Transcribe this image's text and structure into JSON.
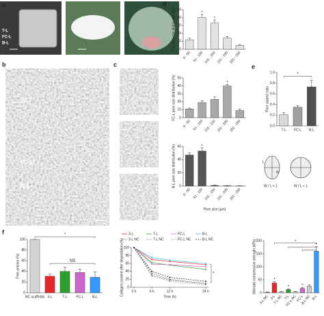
{
  "panel_labels": [
    "a",
    "b",
    "c",
    "d",
    "e",
    "f"
  ],
  "photo_labels": [
    "T-L",
    "FC-L",
    "B-L"
  ],
  "sem_labels": [
    "T-L",
    "FC-L",
    "B-L"
  ],
  "aspect_diagram": {
    "labels": [
      "L",
      "W",
      "W / L < 1",
      "W / L ≈ 1"
    ]
  },
  "chart_data": [
    {
      "type": "bar",
      "y_label": "T-L pore size distribution (%)",
      "categories": [
        "0 - 50",
        "51 - 100",
        "101 - 150",
        "151 - 200",
        "201 - 250"
      ],
      "values": [
        12,
        40,
        33,
        14,
        5
      ],
      "errors": [
        2,
        4,
        4,
        2,
        1
      ],
      "color": "#e2e2e2",
      "ylim": [
        0,
        50
      ],
      "yticks": [
        0,
        10,
        20,
        30,
        40,
        50
      ],
      "annotations": [
        "*",
        "*"
      ]
    },
    {
      "type": "bar",
      "y_label": "FC-L pore size distribution (%)",
      "categories": [
        "0 - 50",
        "51 - 100",
        "101 - 150",
        "151 - 200",
        "201 - 250"
      ],
      "values": [
        11,
        19,
        23,
        40,
        9
      ],
      "errors": [
        1,
        2,
        3,
        2,
        2
      ],
      "color": "#a9a9a9",
      "ylim": [
        0,
        50
      ],
      "yticks": [
        0,
        10,
        20,
        30,
        40,
        50
      ],
      "annotations": [
        "*"
      ]
    },
    {
      "type": "bar",
      "y_label": "B-L pore size distribution (%)",
      "x_label": "Pore size (μm)",
      "categories": [
        "0 - 50",
        "51 - 100",
        "101 - 150",
        "151 - 200",
        "201 - 250"
      ],
      "values": [
        47,
        53,
        1,
        0.5,
        0.3
      ],
      "errors": [
        3,
        5,
        0.5,
        0.3,
        0.2
      ],
      "color": "#555555",
      "ylim": [
        0,
        60
      ],
      "yticks": [
        0,
        20,
        40,
        60
      ],
      "annotations": [
        "*"
      ]
    },
    {
      "type": "bar",
      "y_label": "Pore aspect ratio",
      "categories": [
        "T-L",
        "FC-L",
        "B-L"
      ],
      "values": [
        0.21,
        0.35,
        0.73
      ],
      "errors": [
        0.04,
        0.03,
        0.12
      ],
      "colors": [
        "#d8d8d8",
        "#a0a0a0",
        "#505050"
      ],
      "ylim": [
        0,
        1
      ],
      "yticks": [
        {
          "value": 0,
          "label": "0.0"
        },
        0.2,
        0.4,
        0.6,
        0.8,
        {
          "value": 1,
          "label": "1.0"
        }
      ],
      "annotations": [
        "*"
      ]
    },
    {
      "type": "bar",
      "y_label": "Free amines (%)",
      "categories": [
        "NC scaffolds",
        "3-L",
        "T-L",
        "FC-L",
        "B-L"
      ],
      "values": [
        100,
        31,
        40,
        38,
        29
      ],
      "errors": [
        0,
        4,
        8,
        6,
        10
      ],
      "colors": [
        "#d4d4d4",
        "#e8262a",
        "#2ca02c",
        "#cc66cc",
        "#3399ff"
      ],
      "ylim": [
        0,
        100
      ],
      "yticks": [
        0,
        20,
        40,
        60,
        80,
        100
      ],
      "annotations": [
        "*",
        "NS"
      ]
    },
    {
      "type": "line",
      "y_label": "Collagen content after degradation (%)",
      "x_label": "Time (h)",
      "x": [
        0,
        6,
        12,
        24
      ],
      "xlim": [
        0,
        24
      ],
      "xticks": [
        {
          "value": 0,
          "label": "0 h"
        },
        {
          "value": 6,
          "label": "6 h"
        },
        {
          "value": 12,
          "label": "12 h"
        },
        {
          "value": 24,
          "label": "24 h"
        }
      ],
      "ylim": [
        0,
        100
      ],
      "yticks": [
        0,
        20,
        40,
        60,
        80,
        100
      ],
      "series": [
        {
          "name": "3-L",
          "color": "#e8262a",
          "values": [
            100,
            70,
            65,
            57
          ]
        },
        {
          "name": "T-L",
          "color": "#2ca02c",
          "values": [
            100,
            62,
            56,
            45
          ]
        },
        {
          "name": "FC-L",
          "color": "#cc66cc",
          "values": [
            100,
            58,
            57,
            52
          ]
        },
        {
          "name": "B-L",
          "color": "#33b5e5",
          "values": [
            100,
            75,
            68,
            60
          ]
        },
        {
          "name": "3-L NC",
          "color": "#555555",
          "line_style": "dashed",
          "values": [
            100,
            35,
            20,
            10
          ]
        },
        {
          "name": "T-L NC",
          "color": "#777777",
          "line_style": "dashed",
          "values": [
            100,
            30,
            18,
            8
          ]
        },
        {
          "name": "FC-L NC",
          "color": "#999999",
          "line_style": "dashed",
          "values": [
            100,
            28,
            15,
            6
          ]
        },
        {
          "name": "B-L NC",
          "color": "#222222",
          "line_style": "dashed",
          "values": [
            100,
            40,
            25,
            15
          ]
        }
      ],
      "annotations": [
        "*"
      ]
    },
    {
      "type": "bar",
      "y_label": "Ultimate compressive strength (kPa)",
      "categories": [
        "3-L NC",
        "3-L",
        "T-L NC",
        "T-L",
        "FC-L NC",
        "FC-L",
        "B-L NC",
        "B-L"
      ],
      "values": [
        2,
        38,
        3,
        12,
        4,
        17,
        25,
        160
      ],
      "errors": [
        1,
        5,
        1,
        3,
        1,
        4,
        6,
        18
      ],
      "colors": [
        "#cccccc",
        "#e8262a",
        "#cccccc",
        "#2ca02c",
        "#cccccc",
        "#cc66cc",
        "#cccccc",
        "#3399ff"
      ],
      "ylim": [
        0,
        200
      ],
      "yticks": [
        0,
        50,
        100,
        150,
        200
      ],
      "annotations": [
        "*",
        "*",
        "*",
        "*",
        "*"
      ]
    }
  ]
}
